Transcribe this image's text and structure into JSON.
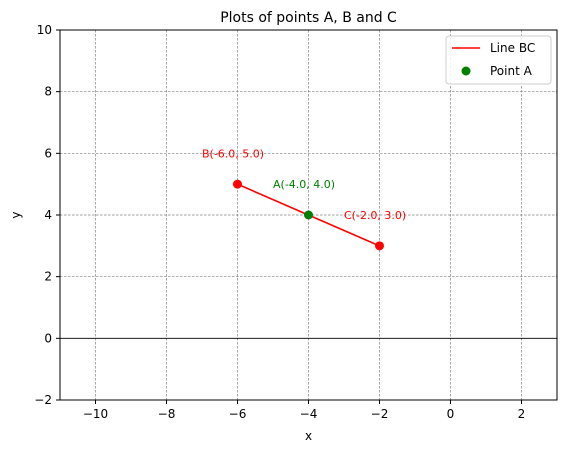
{
  "chart_data": {
    "type": "line",
    "title": "Plots of points A, B and C",
    "xlabel": "x",
    "ylabel": "y",
    "xlim": [
      -11,
      3
    ],
    "ylim": [
      -2,
      10
    ],
    "xticks": [
      -10,
      -8,
      -6,
      -4,
      -2,
      0,
      2
    ],
    "yticks": [
      -2,
      0,
      2,
      4,
      6,
      8,
      10
    ],
    "xtick_labels": [
      "−10",
      "−8",
      "−6",
      "−4",
      "−2",
      "0",
      "2"
    ],
    "ytick_labels": [
      "−2",
      "0",
      "2",
      "4",
      "6",
      "8",
      "10"
    ],
    "grid": true,
    "horizontal_reference_line_y": 0,
    "legend_position": "top-right",
    "series": [
      {
        "name": "Line BC",
        "kind": "line",
        "color": "#ff0000",
        "x": [
          -6,
          -2
        ],
        "y": [
          5,
          3
        ]
      },
      {
        "name": "Point A",
        "kind": "point",
        "color": "#008000",
        "x": [
          -4
        ],
        "y": [
          4
        ]
      }
    ],
    "annotations": [
      {
        "text": "B(-6.0, 5.0)",
        "x": -7,
        "y": 6,
        "color": "#ff0000"
      },
      {
        "text": "A(-4.0, 4.0)",
        "x": -5,
        "y": 5,
        "color": "#008000"
      },
      {
        "text": "C(-2.0, 3.0)",
        "x": -3,
        "y": 4,
        "color": "#ff0000"
      }
    ]
  }
}
